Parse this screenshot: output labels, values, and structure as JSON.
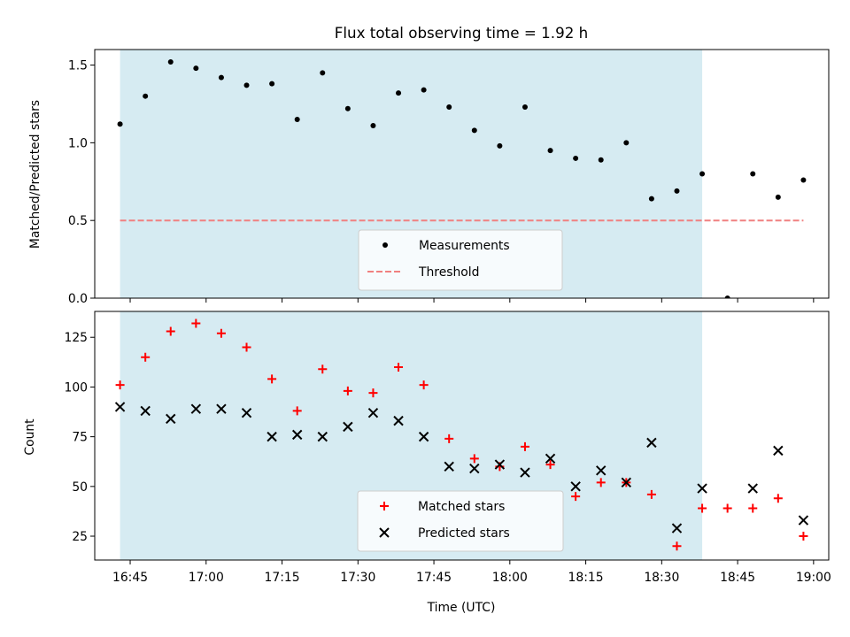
{
  "chart_data": [
    {
      "type": "scatter",
      "panel": "top",
      "title": "Flux total observing time = 1.92 h",
      "ylabel": "Matched/Predicted stars",
      "xlabel": "",
      "ylim": [
        0,
        1.6
      ],
      "yticks": [
        0.0,
        0.5,
        1.0,
        1.5
      ],
      "ytick_labels": [
        "0.0",
        "0.5",
        "1.0",
        "1.5"
      ],
      "highlight_region": {
        "start": "16:43",
        "end": "18:38",
        "color": "#add8e6"
      },
      "series": [
        {
          "name": "Measurements",
          "kind": "scatter",
          "marker": "dot",
          "color": "#000000",
          "x": [
            "16:43",
            "16:48",
            "16:53",
            "16:58",
            "17:03",
            "17:08",
            "17:13",
            "17:18",
            "17:23",
            "17:28",
            "17:33",
            "17:38",
            "17:43",
            "17:48",
            "17:53",
            "17:58",
            "18:03",
            "18:08",
            "18:13",
            "18:18",
            "18:23",
            "18:28",
            "18:33",
            "18:38",
            "18:43",
            "18:48",
            "18:53",
            "18:58"
          ],
          "y": [
            1.12,
            1.3,
            1.52,
            1.48,
            1.42,
            1.37,
            1.38,
            1.15,
            1.45,
            1.22,
            1.11,
            1.32,
            1.34,
            1.23,
            1.08,
            0.98,
            1.23,
            0.95,
            0.9,
            0.89,
            1.0,
            0.64,
            0.69,
            0.8,
            0.0,
            0.8,
            0.65,
            0.76
          ]
        },
        {
          "name": "Threshold",
          "kind": "line",
          "style": "dashed",
          "color": "#f08080",
          "x": [
            "16:43",
            "18:58"
          ],
          "y": [
            0.5,
            0.5
          ]
        }
      ],
      "legend": {
        "placement": "lower-center",
        "entries": [
          "Measurements",
          "Threshold"
        ]
      }
    },
    {
      "type": "scatter",
      "panel": "bottom",
      "title": "",
      "ylabel": "Count",
      "xlabel": "Time (UTC)",
      "ylim": [
        13,
        138
      ],
      "yticks": [
        25,
        50,
        75,
        100,
        125
      ],
      "ytick_labels": [
        "25",
        "50",
        "75",
        "100",
        "125"
      ],
      "xlim": [
        "16:38",
        "19:03"
      ],
      "xticks": [
        "16:45",
        "17:00",
        "17:15",
        "17:30",
        "17:45",
        "18:00",
        "18:15",
        "18:30",
        "18:45",
        "19:00"
      ],
      "highlight_region": {
        "start": "16:43",
        "end": "18:38",
        "color": "#add8e6"
      },
      "series": [
        {
          "name": "Matched stars",
          "kind": "scatter",
          "marker": "plus",
          "color": "#ff0000",
          "x": [
            "16:43",
            "16:48",
            "16:53",
            "16:58",
            "17:03",
            "17:08",
            "17:13",
            "17:18",
            "17:23",
            "17:28",
            "17:33",
            "17:38",
            "17:43",
            "17:48",
            "17:53",
            "17:58",
            "18:03",
            "18:08",
            "18:13",
            "18:18",
            "18:23",
            "18:28",
            "18:33",
            "18:38",
            "18:43",
            "18:48",
            "18:53",
            "18:58"
          ],
          "y": [
            101,
            115,
            128,
            132,
            127,
            120,
            104,
            88,
            109,
            98,
            97,
            110,
            101,
            74,
            64,
            60,
            70,
            61,
            45,
            52,
            52,
            46,
            20,
            39,
            39,
            39,
            44,
            25
          ]
        },
        {
          "name": "Predicted stars",
          "kind": "scatter",
          "marker": "x",
          "color": "#000000",
          "x": [
            "16:43",
            "16:48",
            "16:53",
            "16:58",
            "17:03",
            "17:08",
            "17:13",
            "17:18",
            "17:23",
            "17:28",
            "17:33",
            "17:38",
            "17:43",
            "17:48",
            "17:53",
            "17:58",
            "18:03",
            "18:08",
            "18:13",
            "18:18",
            "18:23",
            "18:28",
            "18:33",
            "18:38",
            "18:48",
            "18:53",
            "18:58"
          ],
          "y": [
            90,
            88,
            84,
            89,
            89,
            87,
            75,
            76,
            75,
            80,
            87,
            83,
            75,
            60,
            59,
            61,
            57,
            64,
            50,
            58,
            52,
            72,
            29,
            49,
            49,
            68,
            33
          ]
        }
      ],
      "legend": {
        "placement": "lower-center",
        "entries": [
          "Matched stars",
          "Predicted stars"
        ]
      }
    }
  ]
}
